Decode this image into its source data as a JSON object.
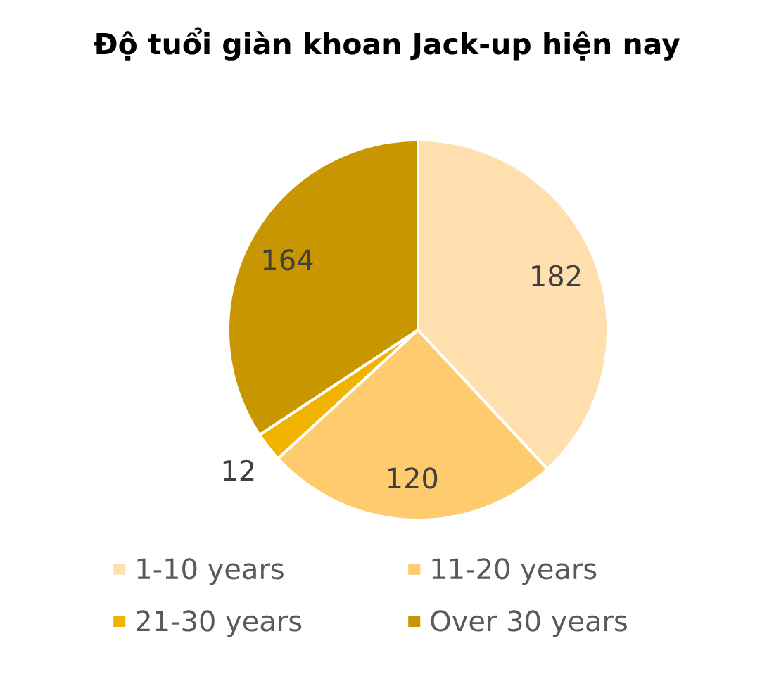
{
  "chart_data": {
    "type": "pie",
    "title": "Độ tuổi giàn khoan Jack-up hiện nay",
    "categories": [
      "1-10 years",
      "11-20 years",
      "21-30 years",
      "Over 30 years"
    ],
    "values": [
      182,
      120,
      12,
      164
    ],
    "colors": [
      "#ffdfad",
      "#fecb6e",
      "#f0b400",
      "#c89600"
    ],
    "data_labels": true,
    "legend": "bottom"
  }
}
